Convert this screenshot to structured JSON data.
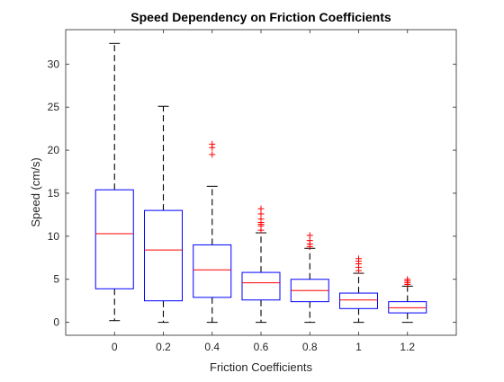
{
  "chart_data": {
    "type": "box",
    "title": "Speed Dependency on Friction Coefficients",
    "xlabel": "Friction Coefficients",
    "ylabel": "Speed (cm/s)",
    "ylim": [
      -1.5,
      34
    ],
    "yticks": [
      0,
      5,
      10,
      15,
      20,
      25,
      30
    ],
    "categories": [
      "0",
      "0.2",
      "0.4",
      "0.6",
      "0.8",
      "1",
      "1.2"
    ],
    "boxes": [
      {
        "q1": 3.9,
        "median": 10.3,
        "q3": 15.4,
        "whisker_low": 0.2,
        "whisker_high": 32.4,
        "outliers": []
      },
      {
        "q1": 2.5,
        "median": 8.4,
        "q3": 13.0,
        "whisker_low": 0.0,
        "whisker_high": 25.1,
        "outliers": []
      },
      {
        "q1": 2.9,
        "median": 6.1,
        "q3": 9.0,
        "whisker_low": 0.0,
        "whisker_high": 15.8,
        "outliers": [
          19.5,
          20.3,
          20.7
        ]
      },
      {
        "q1": 2.6,
        "median": 4.6,
        "q3": 5.8,
        "whisker_low": 0.0,
        "whisker_high": 10.4,
        "outliers": [
          10.7,
          11.2,
          11.4,
          11.6,
          12.0,
          12.6,
          13.2
        ]
      },
      {
        "q1": 2.4,
        "median": 3.7,
        "q3": 5.0,
        "whisker_low": 0.0,
        "whisker_high": 8.6,
        "outliers": [
          8.8,
          9.1,
          9.5,
          10.1
        ]
      },
      {
        "q1": 1.6,
        "median": 2.6,
        "q3": 3.4,
        "whisker_low": 0.0,
        "whisker_high": 5.7,
        "outliers": [
          6.0,
          6.4,
          6.8,
          7.1,
          7.4
        ]
      },
      {
        "q1": 1.1,
        "median": 1.7,
        "q3": 2.4,
        "whisker_low": 0.0,
        "whisker_high": 4.2,
        "outliers": [
          4.4,
          4.6,
          4.8,
          5.0
        ]
      }
    ],
    "grid": false,
    "colors": {
      "box": "#0000ff",
      "median": "#ff0000",
      "whisker": "#000000",
      "outlier": "#ff0000",
      "axis": "#262626"
    }
  }
}
